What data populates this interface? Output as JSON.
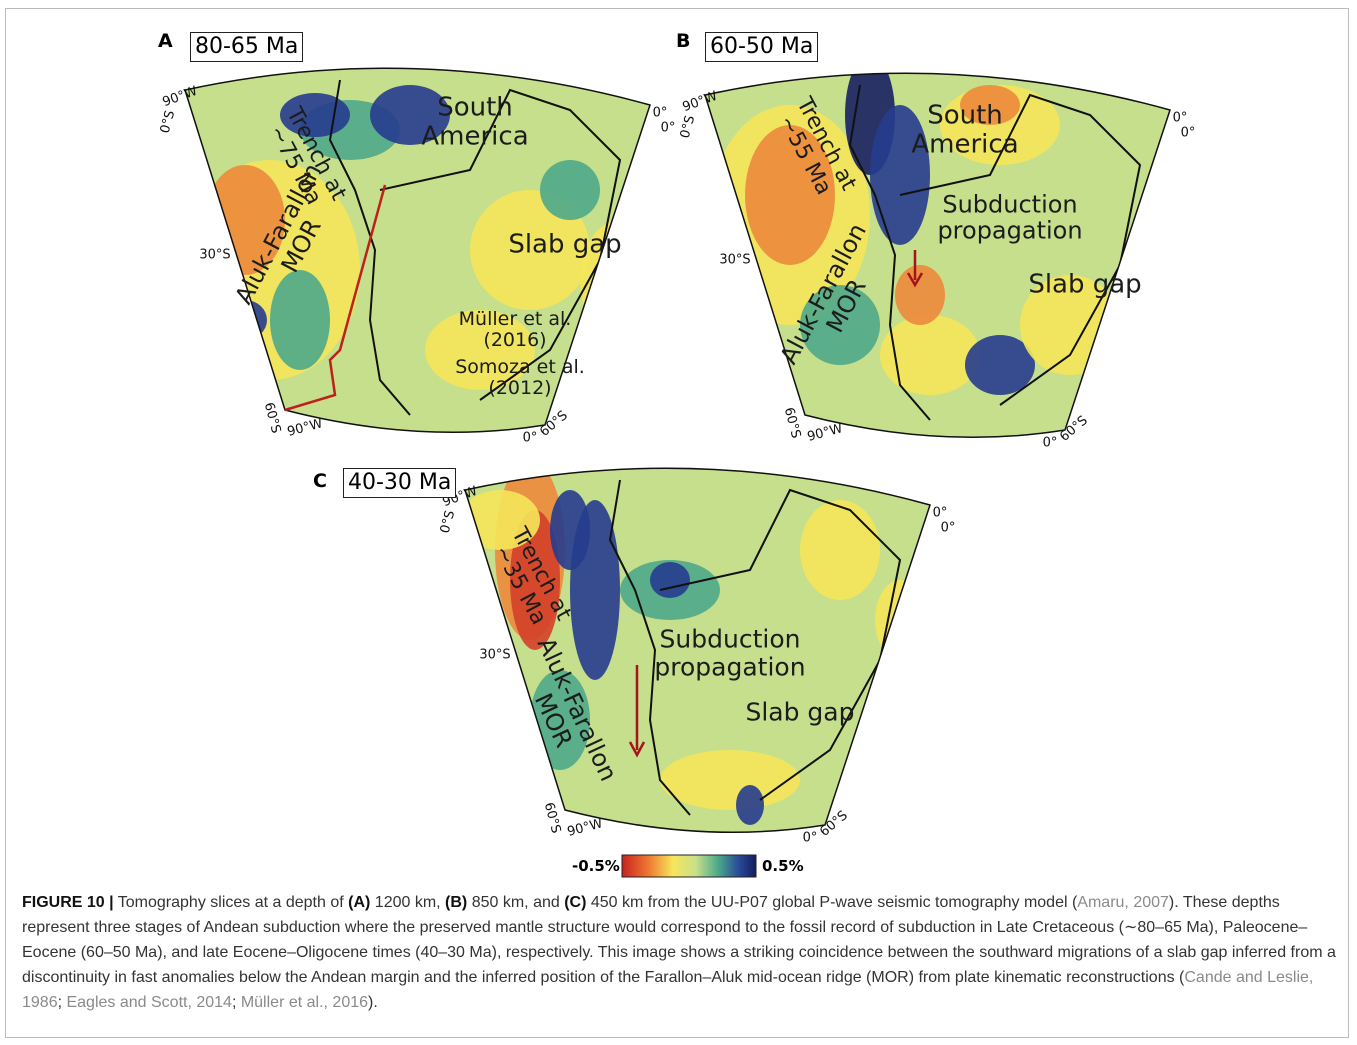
{
  "figure": {
    "panels": [
      {
        "letter": "A",
        "title": "80-65 Ma",
        "labels": [
          "South America",
          "Trench at ~75 Ma",
          "Aluk-Farallon MOR",
          "Slab gap",
          "Müller et al. (2016)",
          "Somoza et al. (2012)"
        ],
        "coords": [
          "90°W",
          "0°S",
          "0°",
          "0°",
          "30°S",
          "60°S",
          "90°W",
          "0°",
          "60°S"
        ]
      },
      {
        "letter": "B",
        "title": "60-50 Ma",
        "labels": [
          "South America",
          "Trench at ~55 Ma",
          "Subduction propagation",
          "Slab gap",
          "Aluk-Farallon MOR"
        ],
        "coords": [
          "90°W",
          "0°S",
          "0°",
          "0°",
          "30°S",
          "60°S",
          "90°W",
          "0°",
          "60°S"
        ]
      },
      {
        "letter": "C",
        "title": "40-30 Ma",
        "labels": [
          "Trench at ~35 Ma",
          "Subduction propagation",
          "Slab gap",
          "Aluk-Farallon MOR"
        ],
        "coords": [
          "90°W",
          "0°S",
          "0°",
          "0°",
          "30°S",
          "60°S",
          "90°W",
          "0°",
          "60°S"
        ]
      }
    ],
    "colorbar": {
      "min_label": "-0.5%",
      "max_label": "0.5%"
    },
    "caption": {
      "parts": [
        "FIGURE 10 |",
        " Tomography slices at a depth of ",
        "(A)",
        " 1200 km, ",
        "(B)",
        " 850 km, and ",
        "(C)",
        " 450 km from the UU-P07 global P-wave seismic tomography model (",
        "Amaru, 2007",
        "). These depths represent three stages of Andean subduction where the preserved mantle structure would correspond to the fossil record of subduction in Late Cretaceous (∼80–65 Ma), Paleocene–Eocene (60–50 Ma), and late Eocene–Oligocene times (40–30 Ma), respectively. This image shows a striking coincidence between the southward migrations of a slab gap inferred from a discontinuity in fast anomalies below the Andean margin and the inferred position of the Farallon–Aluk mid-ocean ridge (MOR) from plate kinematic reconstructions (",
        "Cande and Leslie, 1986",
        "; ",
        "Eagles and Scott, 2014",
        "; ",
        "Müller et al., 2016",
        ")."
      ]
    }
  }
}
